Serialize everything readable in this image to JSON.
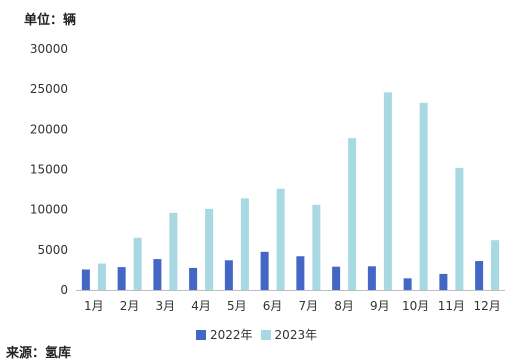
{
  "unit_label": "单位：辆",
  "source_label": "来源：氢库",
  "chart_data": {
    "type": "bar",
    "title": "",
    "xlabel": "",
    "ylabel": "",
    "categories": [
      "1月",
      "2月",
      "3月",
      "4月",
      "5月",
      "6月",
      "7月",
      "8月",
      "9月",
      "10月",
      "11月",
      "12月"
    ],
    "ylim": [
      0,
      30000
    ],
    "yticks": [
      0,
      5000,
      10000,
      15000,
      20000,
      25000,
      30000
    ],
    "grid": false,
    "legend_position": "bottom",
    "series": [
      {
        "name": "2022年",
        "color": "#4466c4",
        "values": [
          2550,
          2850,
          3850,
          2750,
          3700,
          4750,
          4200,
          2900,
          2950,
          1450,
          2000,
          3600
        ]
      },
      {
        "name": "2023年",
        "color": "#a8d8e2",
        "values": [
          3300,
          6500,
          9600,
          10100,
          11400,
          12600,
          10600,
          18900,
          24600,
          23300,
          15200,
          6200
        ]
      }
    ]
  }
}
